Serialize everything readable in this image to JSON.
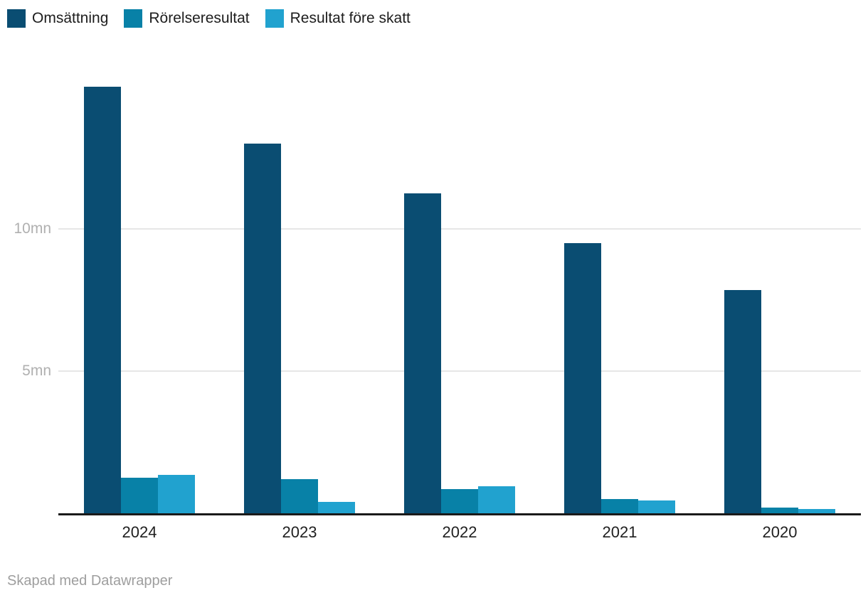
{
  "chart_data": {
    "type": "bar",
    "title": "",
    "categories": [
      "2024",
      "2023",
      "2022",
      "2021",
      "2020"
    ],
    "series": [
      {
        "name": "Omsättning",
        "color": "#0a4d72",
        "values": [
          15.0,
          13.0,
          11.25,
          9.5,
          7.85
        ]
      },
      {
        "name": "Rörelseresultat",
        "color": "#0881a7",
        "values": [
          1.25,
          1.2,
          0.85,
          0.5,
          0.2
        ]
      },
      {
        "name": "Resultat före skatt",
        "color": "#21a2cf",
        "values": [
          1.35,
          0.4,
          0.95,
          0.45,
          0.15
        ]
      }
    ],
    "unit": "mn",
    "ylim": [
      0,
      15
    ],
    "y_ticks": [
      {
        "value": 5,
        "label": "5mn"
      },
      {
        "value": 10,
        "label": "10mn"
      }
    ],
    "xlabel": "",
    "ylabel": "",
    "grid": "horizontal",
    "legend_position": "top-left"
  },
  "footer": {
    "credit": "Skapad med Datawrapper"
  },
  "colors": {
    "axis": "#1a1a1a",
    "gridline": "#e6e6e6",
    "tick_label": "#b0b0b0",
    "category_label": "#1f1f1f",
    "background": "#ffffff"
  }
}
